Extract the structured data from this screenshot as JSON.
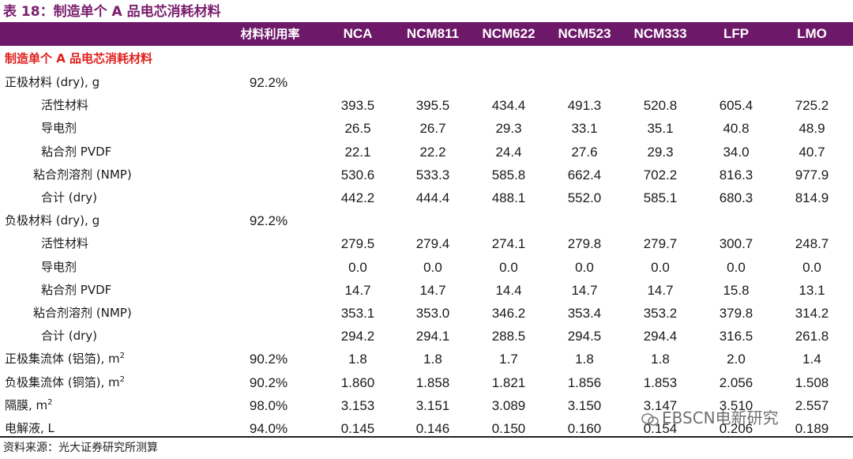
{
  "title": "表 18：制造单个 A 品电芯消耗材料",
  "header": {
    "rate_label": "材料利用率",
    "columns": [
      "NCA",
      "NCM811",
      "NCM622",
      "NCM523",
      "NCM333",
      "LFP",
      "LMO"
    ]
  },
  "section_title": "制造单个 A 品电芯消耗材料",
  "rows": [
    {
      "label": "正极材料 (dry), g",
      "indent": 0,
      "rate": "92.2%",
      "values": [
        "",
        "",
        "",
        "",
        "",
        "",
        ""
      ]
    },
    {
      "label": "活性材料",
      "indent": 2,
      "rate": "",
      "values": [
        "393.5",
        "395.5",
        "434.4",
        "491.3",
        "520.8",
        "605.4",
        "725.2"
      ]
    },
    {
      "label": "导电剂",
      "indent": 2,
      "rate": "",
      "values": [
        "26.5",
        "26.7",
        "29.3",
        "33.1",
        "35.1",
        "40.8",
        "48.9"
      ]
    },
    {
      "label": "粘合剂 PVDF",
      "indent": 2,
      "rate": "",
      "values": [
        "22.1",
        "22.2",
        "24.4",
        "27.6",
        "29.3",
        "34.0",
        "40.7"
      ]
    },
    {
      "label": "粘合剂溶剂 (NMP)",
      "indent": 1,
      "rate": "",
      "values": [
        "530.6",
        "533.3",
        "585.8",
        "662.4",
        "702.2",
        "816.3",
        "977.9"
      ]
    },
    {
      "label": "合计 (dry)",
      "indent": 2,
      "rate": "",
      "values": [
        "442.2",
        "444.4",
        "488.1",
        "552.0",
        "585.1",
        "680.3",
        "814.9"
      ]
    },
    {
      "label": "负极材料 (dry), g",
      "indent": 0,
      "rate": "92.2%",
      "values": [
        "",
        "",
        "",
        "",
        "",
        "",
        ""
      ]
    },
    {
      "label": "活性材料",
      "indent": 2,
      "rate": "",
      "values": [
        "279.5",
        "279.4",
        "274.1",
        "279.8",
        "279.7",
        "300.7",
        "248.7"
      ]
    },
    {
      "label": "导电剂",
      "indent": 2,
      "rate": "",
      "values": [
        "0.0",
        "0.0",
        "0.0",
        "0.0",
        "0.0",
        "0.0",
        "0.0"
      ]
    },
    {
      "label": "粘合剂 PVDF",
      "indent": 2,
      "rate": "",
      "values": [
        "14.7",
        "14.7",
        "14.4",
        "14.7",
        "14.7",
        "15.8",
        "13.1"
      ]
    },
    {
      "label": "粘合剂溶剂 (NMP)",
      "indent": 1,
      "rate": "",
      "values": [
        "353.1",
        "353.0",
        "346.2",
        "353.4",
        "353.2",
        "379.8",
        "314.2"
      ]
    },
    {
      "label": "合计 (dry)",
      "indent": 2,
      "rate": "",
      "values": [
        "294.2",
        "294.1",
        "288.5",
        "294.5",
        "294.4",
        "316.5",
        "261.8"
      ]
    },
    {
      "label": "正极集流体 (铝箔), m",
      "sup": "2",
      "indent": 0,
      "rate": "90.2%",
      "values": [
        "1.8",
        "1.8",
        "1.7",
        "1.8",
        "1.8",
        "2.0",
        "1.4"
      ]
    },
    {
      "label": "负极集流体 (铜箔), m",
      "sup": "2",
      "indent": 0,
      "rate": "90.2%",
      "values": [
        "1.860",
        "1.858",
        "1.821",
        "1.856",
        "1.853",
        "2.056",
        "1.508"
      ]
    },
    {
      "label": "隔膜, m",
      "sup": "2",
      "indent": 0,
      "rate": "98.0%",
      "values": [
        "3.153",
        "3.151",
        "3.089",
        "3.150",
        "3.147",
        "3.510",
        "2.557"
      ]
    },
    {
      "label": "电解液, L",
      "indent": 0,
      "rate": "94.0%",
      "values": [
        "0.145",
        "0.146",
        "0.150",
        "0.160",
        "0.154",
        "0.206",
        "0.189"
      ]
    }
  ],
  "source": "资料来源：光大证券研究所测算",
  "watermark": "EBSCN电新研究",
  "colors": {
    "header_bg": "#6d1868",
    "title": "#7a1e6e",
    "section": "#e0201d"
  }
}
